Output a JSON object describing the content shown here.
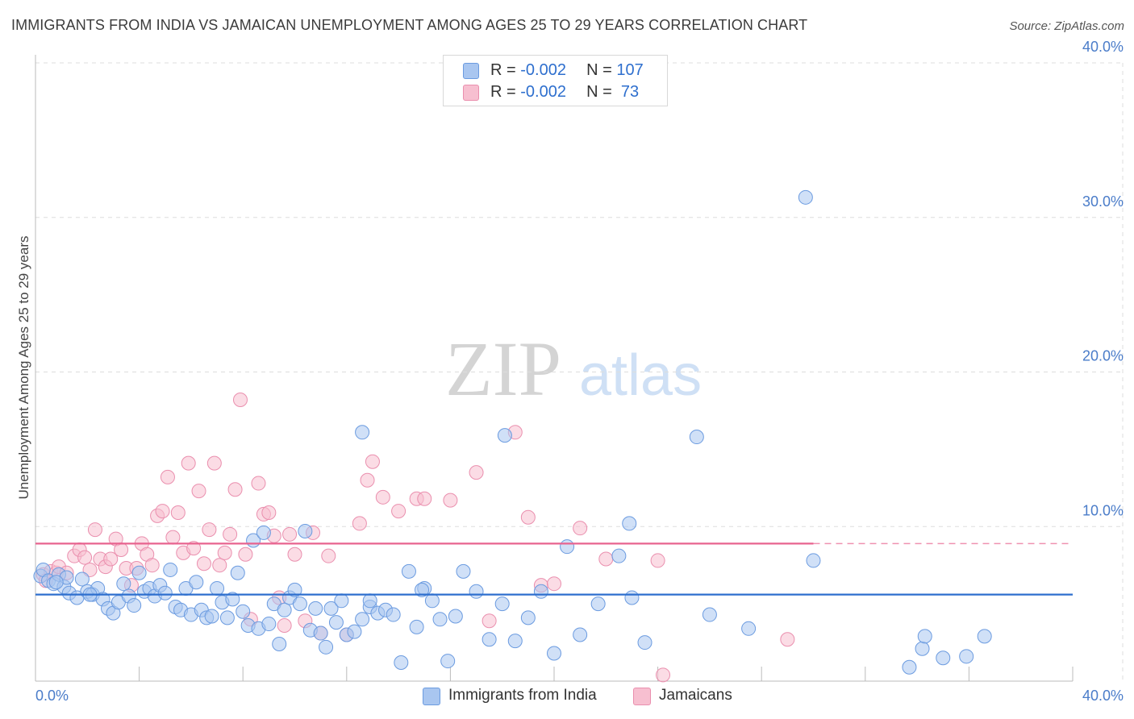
{
  "title": "IMMIGRANTS FROM INDIA VS JAMAICAN UNEMPLOYMENT AMONG AGES 25 TO 29 YEARS CORRELATION CHART",
  "source": "Source: ZipAtlas.com",
  "watermark": {
    "zip": "ZIP",
    "atlas": "atlas"
  },
  "colors": {
    "india_fill": "#a9c6f0",
    "india_stroke": "#6b9be0",
    "india_line": "#2e6fce",
    "jam_fill": "#f7bfd0",
    "jam_stroke": "#ea8fae",
    "jam_line": "#e8638f",
    "grid": "#dddddd",
    "tick_text": "#4a7cc9"
  },
  "legend": {
    "rows": [
      {
        "r_label": "R = ",
        "r_value": "-0.002",
        "n_label": "N = ",
        "n_value": "107"
      },
      {
        "r_label": "R = ",
        "r_value": "-0.002",
        "n_label": "N = ",
        "n_value": " 73"
      }
    ]
  },
  "bottom_legend": [
    "Immigrants from India",
    "Jamaicans"
  ],
  "chart_data": {
    "type": "scatter",
    "title": "IMMIGRANTS FROM INDIA VS JAMAICAN UNEMPLOYMENT AMONG AGES 25 TO 29 YEARS CORRELATION CHART",
    "xlabel": "",
    "ylabel": "Unemployment Among Ages 25 to 29 years",
    "xlim": [
      0,
      40
    ],
    "ylim": [
      0,
      40
    ],
    "x_ticks": [
      "0.0%",
      "40.0%"
    ],
    "y_ticks": [
      {
        "value": 10,
        "label": "10.0%"
      },
      {
        "value": 20,
        "label": "20.0%"
      },
      {
        "value": 30,
        "label": "30.0%"
      },
      {
        "value": 40,
        "label": "40.0%"
      }
    ],
    "grid": true,
    "series": [
      {
        "name": "Immigrants from India",
        "r": -0.002,
        "n": 107,
        "trend": {
          "x": [
            0,
            40
          ],
          "y": [
            5.6,
            5.6
          ]
        },
        "points": [
          [
            0.2,
            6.8
          ],
          [
            0.3,
            7.2
          ],
          [
            0.5,
            6.5
          ],
          [
            0.7,
            6.3
          ],
          [
            0.9,
            6.9
          ],
          [
            1.1,
            6.1
          ],
          [
            1.3,
            5.7
          ],
          [
            1.6,
            5.4
          ],
          [
            1.8,
            6.6
          ],
          [
            2.0,
            5.8
          ],
          [
            2.2,
            5.6
          ],
          [
            2.4,
            6.0
          ],
          [
            2.6,
            5.3
          ],
          [
            2.8,
            4.7
          ],
          [
            3.0,
            4.4
          ],
          [
            3.2,
            5.1
          ],
          [
            3.4,
            6.3
          ],
          [
            3.6,
            5.5
          ],
          [
            3.8,
            4.9
          ],
          [
            4.0,
            7.0
          ],
          [
            4.2,
            5.8
          ],
          [
            4.4,
            6.0
          ],
          [
            4.6,
            5.5
          ],
          [
            4.8,
            6.2
          ],
          [
            5.0,
            5.7
          ],
          [
            5.2,
            7.2
          ],
          [
            5.4,
            4.8
          ],
          [
            5.6,
            4.6
          ],
          [
            5.8,
            6.0
          ],
          [
            6.0,
            4.3
          ],
          [
            6.2,
            6.4
          ],
          [
            6.4,
            4.6
          ],
          [
            6.6,
            4.1
          ],
          [
            6.8,
            4.2
          ],
          [
            7.0,
            6.0
          ],
          [
            7.2,
            5.1
          ],
          [
            7.4,
            4.1
          ],
          [
            7.6,
            5.3
          ],
          [
            7.8,
            7.0
          ],
          [
            8.0,
            4.5
          ],
          [
            8.2,
            3.6
          ],
          [
            8.4,
            9.1
          ],
          [
            8.6,
            3.4
          ],
          [
            8.8,
            9.6
          ],
          [
            9.0,
            3.7
          ],
          [
            9.2,
            5.0
          ],
          [
            9.4,
            2.4
          ],
          [
            9.6,
            4.6
          ],
          [
            9.8,
            5.4
          ],
          [
            10.0,
            5.9
          ],
          [
            10.2,
            5.0
          ],
          [
            10.4,
            9.7
          ],
          [
            10.6,
            3.3
          ],
          [
            10.8,
            4.7
          ],
          [
            11.0,
            3.1
          ],
          [
            11.2,
            2.2
          ],
          [
            11.4,
            4.7
          ],
          [
            11.6,
            3.8
          ],
          [
            11.8,
            5.2
          ],
          [
            12.0,
            3.0
          ],
          [
            12.3,
            3.2
          ],
          [
            12.6,
            4.0
          ],
          [
            12.9,
            4.8
          ],
          [
            13.2,
            4.4
          ],
          [
            13.5,
            4.6
          ],
          [
            13.8,
            4.3
          ],
          [
            14.1,
            1.2
          ],
          [
            14.4,
            7.1
          ],
          [
            14.7,
            3.5
          ],
          [
            15.0,
            6.0
          ],
          [
            15.3,
            5.2
          ],
          [
            15.6,
            4.0
          ],
          [
            15.9,
            1.3
          ],
          [
            16.2,
            4.2
          ],
          [
            16.5,
            7.1
          ],
          [
            17.0,
            5.8
          ],
          [
            17.5,
            2.7
          ],
          [
            18.0,
            5.0
          ],
          [
            18.5,
            2.6
          ],
          [
            19.0,
            4.1
          ],
          [
            19.5,
            5.8
          ],
          [
            20.0,
            1.8
          ],
          [
            20.5,
            8.7
          ],
          [
            21.0,
            3.0
          ],
          [
            21.7,
            5.0
          ],
          [
            22.5,
            8.1
          ],
          [
            23.0,
            5.4
          ],
          [
            23.5,
            2.5
          ],
          [
            12.6,
            16.1
          ],
          [
            18.1,
            15.9
          ],
          [
            25.5,
            15.8
          ],
          [
            22.9,
            10.2
          ],
          [
            29.7,
            31.3
          ],
          [
            26.0,
            4.3
          ],
          [
            27.5,
            3.4
          ],
          [
            30.0,
            7.8
          ],
          [
            33.7,
            0.9
          ],
          [
            34.2,
            2.1
          ],
          [
            34.3,
            2.9
          ],
          [
            35.0,
            1.5
          ],
          [
            35.9,
            1.6
          ],
          [
            36.6,
            2.9
          ],
          [
            1.2,
            6.7
          ],
          [
            0.8,
            6.4
          ],
          [
            2.1,
            5.6
          ],
          [
            14.9,
            5.9
          ],
          [
            12.9,
            5.2
          ]
        ]
      },
      {
        "name": "Jamaicans",
        "r": -0.002,
        "n": 73,
        "trend": {
          "x": [
            0,
            30
          ],
          "y": [
            8.9,
            8.9
          ],
          "dashed_to": 40
        },
        "points": [
          [
            0.3,
            6.9
          ],
          [
            0.6,
            7.1
          ],
          [
            0.8,
            7.0
          ],
          [
            0.9,
            7.4
          ],
          [
            1.2,
            7.0
          ],
          [
            1.5,
            8.1
          ],
          [
            1.7,
            8.5
          ],
          [
            1.9,
            8.0
          ],
          [
            2.1,
            7.2
          ],
          [
            2.3,
            9.8
          ],
          [
            2.5,
            7.9
          ],
          [
            2.7,
            7.4
          ],
          [
            2.9,
            7.9
          ],
          [
            3.1,
            9.2
          ],
          [
            3.3,
            8.5
          ],
          [
            3.5,
            7.3
          ],
          [
            3.7,
            6.2
          ],
          [
            3.9,
            7.3
          ],
          [
            4.1,
            8.9
          ],
          [
            4.3,
            8.2
          ],
          [
            4.5,
            7.5
          ],
          [
            4.7,
            10.7
          ],
          [
            4.9,
            11.0
          ],
          [
            5.1,
            13.2
          ],
          [
            5.3,
            9.3
          ],
          [
            5.5,
            10.9
          ],
          [
            5.7,
            8.3
          ],
          [
            5.9,
            14.1
          ],
          [
            6.1,
            8.6
          ],
          [
            6.3,
            12.3
          ],
          [
            6.5,
            7.6
          ],
          [
            6.7,
            9.8
          ],
          [
            6.9,
            14.1
          ],
          [
            7.1,
            7.5
          ],
          [
            7.3,
            8.3
          ],
          [
            7.5,
            9.5
          ],
          [
            7.7,
            12.4
          ],
          [
            7.9,
            18.2
          ],
          [
            8.1,
            8.2
          ],
          [
            8.3,
            4.0
          ],
          [
            8.6,
            12.8
          ],
          [
            8.8,
            10.8
          ],
          [
            9.0,
            10.9
          ],
          [
            9.2,
            9.4
          ],
          [
            9.4,
            5.4
          ],
          [
            9.6,
            3.6
          ],
          [
            9.8,
            9.5
          ],
          [
            10.0,
            8.2
          ],
          [
            10.4,
            3.9
          ],
          [
            10.7,
            9.6
          ],
          [
            11.0,
            3.1
          ],
          [
            11.3,
            8.1
          ],
          [
            12.0,
            3.0
          ],
          [
            12.5,
            10.2
          ],
          [
            12.8,
            13.0
          ],
          [
            13.0,
            14.2
          ],
          [
            13.4,
            11.9
          ],
          [
            14.0,
            11.0
          ],
          [
            14.7,
            11.8
          ],
          [
            15.0,
            11.8
          ],
          [
            16.0,
            11.7
          ],
          [
            17.0,
            13.5
          ],
          [
            17.5,
            3.9
          ],
          [
            18.5,
            16.1
          ],
          [
            19.0,
            10.6
          ],
          [
            19.5,
            6.2
          ],
          [
            20.0,
            6.3
          ],
          [
            21.0,
            9.9
          ],
          [
            22.0,
            7.9
          ],
          [
            24.0,
            7.8
          ],
          [
            24.2,
            0.4
          ],
          [
            29.0,
            2.7
          ],
          [
            0.4,
            6.5
          ]
        ]
      }
    ]
  }
}
